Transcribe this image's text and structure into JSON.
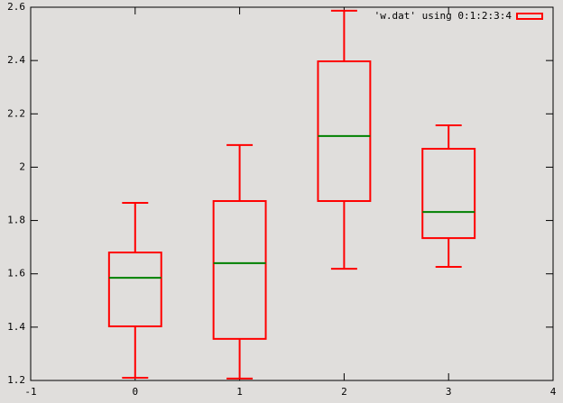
{
  "chart_data": {
    "type": "candlestick",
    "x": [
      0,
      1,
      2,
      3
    ],
    "series": [
      {
        "name": "'w.dat' using 0:1:2:3:4",
        "color": "#ff0000",
        "open": [
          1.403,
          1.356,
          1.873,
          1.734
        ],
        "low": [
          1.21,
          1.207,
          1.619,
          1.626
        ],
        "high": [
          1.866,
          2.083,
          2.587,
          2.157
        ],
        "close": [
          1.68,
          1.873,
          2.397,
          2.069
        ]
      }
    ],
    "median": {
      "color": "#008000",
      "values": [
        1.585,
        1.64,
        2.117,
        1.832
      ]
    },
    "box_width": 0.5,
    "cap_width": 0.25,
    "xlim": [
      -1,
      4
    ],
    "xticks": [
      -1,
      0,
      1,
      2,
      3,
      4
    ],
    "ylim": [
      1.2,
      2.6
    ],
    "yticks": [
      1.2,
      1.4,
      1.6,
      1.8,
      2,
      2.2,
      2.4,
      2.6
    ],
    "legend": "top-right",
    "background": "#e0dedc"
  }
}
